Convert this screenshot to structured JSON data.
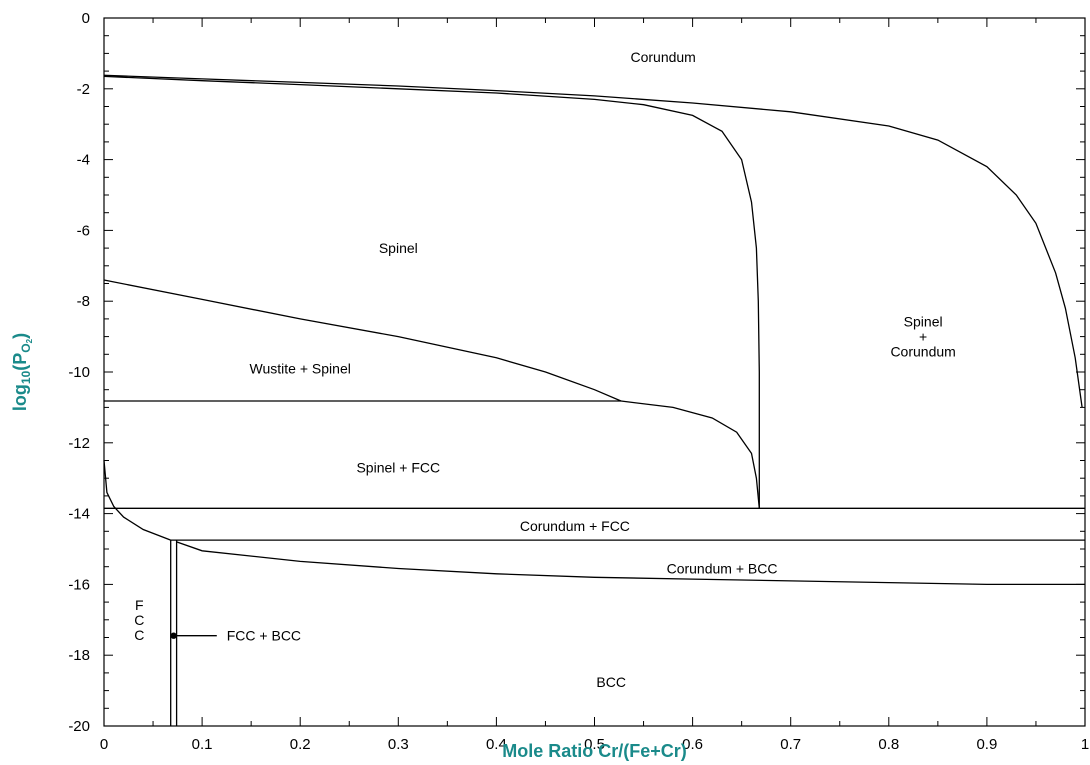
{
  "chart_data": {
    "type": "line",
    "title": "",
    "xlabel": "Mole Ratio Cr/(Fe+Cr)",
    "ylabel_parts": {
      "prefix": "log",
      "base": "10",
      "open": "(P",
      "species": "O",
      "species_sub": "2",
      "close": ")"
    },
    "label_color": "#1a8a8a",
    "xlim": [
      0,
      1
    ],
    "ylim": [
      -20,
      0
    ],
    "xticks": [
      "0",
      "0.1",
      "0.2",
      "0.3",
      "0.4",
      "0.5",
      "0.6",
      "0.7",
      "0.8",
      "0.9",
      "1"
    ],
    "yticks": [
      "0",
      "-2",
      "-4",
      "-6",
      "-8",
      "-10",
      "-12",
      "-14",
      "-16",
      "-18",
      "-20"
    ],
    "grid": false,
    "boundaries": [
      {
        "name": "corundum-spinel-corundum",
        "points": [
          [
            0,
            -1.62
          ],
          [
            0.1,
            -1.72
          ],
          [
            0.2,
            -1.82
          ],
          [
            0.3,
            -1.92
          ],
          [
            0.4,
            -2.05
          ],
          [
            0.5,
            -2.2
          ],
          [
            0.6,
            -2.4
          ],
          [
            0.7,
            -2.65
          ],
          [
            0.8,
            -3.05
          ],
          [
            0.85,
            -3.45
          ],
          [
            0.9,
            -4.2
          ],
          [
            0.93,
            -5.0
          ],
          [
            0.95,
            -5.8
          ],
          [
            0.97,
            -7.2
          ],
          [
            0.98,
            -8.2
          ],
          [
            0.99,
            -9.6
          ],
          [
            0.997,
            -11.0
          ]
        ]
      },
      {
        "name": "spinel-spinel-corundum",
        "points": [
          [
            0,
            -1.65
          ],
          [
            0.1,
            -1.77
          ],
          [
            0.2,
            -1.88
          ],
          [
            0.3,
            -2.0
          ],
          [
            0.4,
            -2.12
          ],
          [
            0.5,
            -2.3
          ],
          [
            0.55,
            -2.45
          ],
          [
            0.6,
            -2.75
          ],
          [
            0.63,
            -3.2
          ],
          [
            0.65,
            -4.0
          ],
          [
            0.66,
            -5.2
          ],
          [
            0.665,
            -6.5
          ],
          [
            0.667,
            -8.0
          ],
          [
            0.668,
            -10.0
          ],
          [
            0.668,
            -13.85
          ]
        ]
      },
      {
        "name": "spinel-wustite-spinel",
        "points": [
          [
            0,
            -7.4
          ],
          [
            0.1,
            -7.95
          ],
          [
            0.2,
            -8.5
          ],
          [
            0.3,
            -9.0
          ],
          [
            0.4,
            -9.6
          ],
          [
            0.45,
            -10.0
          ],
          [
            0.5,
            -10.5
          ],
          [
            0.527,
            -10.82
          ]
        ]
      },
      {
        "name": "wustite-spinel-fcc",
        "points": [
          [
            0,
            -10.82
          ],
          [
            0.527,
            -10.82
          ]
        ]
      },
      {
        "name": "spinel-fcc-right",
        "points": [
          [
            0.527,
            -10.82
          ],
          [
            0.58,
            -11.0
          ],
          [
            0.62,
            -11.3
          ],
          [
            0.645,
            -11.7
          ],
          [
            0.66,
            -12.3
          ],
          [
            0.665,
            -13.0
          ],
          [
            0.668,
            -13.85
          ]
        ]
      },
      {
        "name": "spinel-fcc-corundum-fcc",
        "points": [
          [
            0,
            -13.85
          ],
          [
            1,
            -13.85
          ]
        ]
      },
      {
        "name": "corundum-fcc-corundum-bcc",
        "points": [
          [
            0.068,
            -14.75
          ],
          [
            1,
            -14.75
          ]
        ]
      },
      {
        "name": "fcc-upper-boundary",
        "points": [
          [
            0,
            -12.5
          ],
          [
            0.003,
            -13.4
          ],
          [
            0.01,
            -13.8
          ],
          [
            0.02,
            -14.1
          ],
          [
            0.04,
            -14.45
          ],
          [
            0.068,
            -14.75
          ]
        ]
      },
      {
        "name": "corundum-bcc-bcc",
        "points": [
          [
            0.074,
            -14.8
          ],
          [
            0.1,
            -15.05
          ],
          [
            0.2,
            -15.35
          ],
          [
            0.3,
            -15.55
          ],
          [
            0.4,
            -15.7
          ],
          [
            0.5,
            -15.8
          ],
          [
            0.6,
            -15.85
          ],
          [
            0.7,
            -15.9
          ],
          [
            0.8,
            -15.95
          ],
          [
            0.9,
            -16.0
          ],
          [
            1,
            -16.0
          ]
        ]
      },
      {
        "name": "fcc-bcc-left",
        "points": [
          [
            0.068,
            -14.75
          ],
          [
            0.068,
            -20
          ]
        ]
      },
      {
        "name": "fcc-bcc-right",
        "points": [
          [
            0.074,
            -14.75
          ],
          [
            0.074,
            -20
          ]
        ]
      },
      {
        "name": "fcc-bcc-leader",
        "points": [
          [
            0.071,
            -17.45
          ],
          [
            0.115,
            -17.45
          ]
        ]
      }
    ],
    "marker": {
      "name": "fcc-bcc-marker",
      "x": 0.071,
      "y": -17.45
    },
    "regions": [
      {
        "name": "corundum",
        "lines": [
          "Corundum"
        ],
        "x": 0.57,
        "y": -1.1
      },
      {
        "name": "spinel",
        "lines": [
          "Spinel"
        ],
        "x": 0.3,
        "y": -6.5
      },
      {
        "name": "spinel-corundum",
        "lines": [
          "Spinel",
          "+",
          "Corundum"
        ],
        "x": 0.835,
        "y": -9.0
      },
      {
        "name": "wustite-spinel",
        "lines": [
          "Wustite + Spinel"
        ],
        "x": 0.2,
        "y": -9.9
      },
      {
        "name": "spinel-fcc",
        "lines": [
          "Spinel + FCC"
        ],
        "x": 0.3,
        "y": -12.7
      },
      {
        "name": "corundum-fcc",
        "lines": [
          "Corundum + FCC"
        ],
        "x": 0.48,
        "y": -14.35
      },
      {
        "name": "corundum-bcc",
        "lines": [
          "Corundum + BCC"
        ],
        "x": 0.63,
        "y": -15.55
      },
      {
        "name": "fcc",
        "lines": [
          "F",
          "C",
          "C"
        ],
        "x": 0.036,
        "y": -17.0
      },
      {
        "name": "fcc-bcc",
        "lines": [
          "FCC + BCC"
        ],
        "x": 0.163,
        "y": -17.45
      },
      {
        "name": "bcc",
        "lines": [
          "BCC"
        ],
        "x": 0.517,
        "y": -18.75
      }
    ]
  }
}
